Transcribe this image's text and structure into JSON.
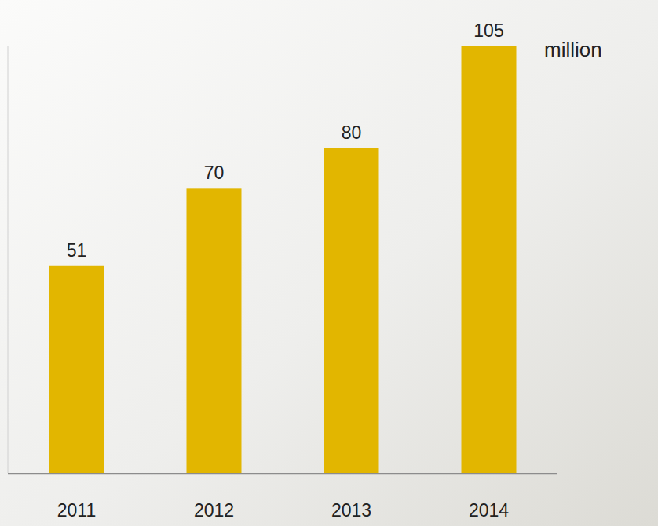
{
  "chart_data": {
    "type": "bar",
    "ylabel": "million",
    "categories": [
      "2011",
      "2012",
      "2013",
      "2014"
    ],
    "values": [
      51,
      70,
      80,
      105
    ],
    "color": "#e2b600",
    "ylim": [
      0,
      105
    ],
    "grid": false,
    "data_labels": true,
    "tick_labels": "x"
  }
}
